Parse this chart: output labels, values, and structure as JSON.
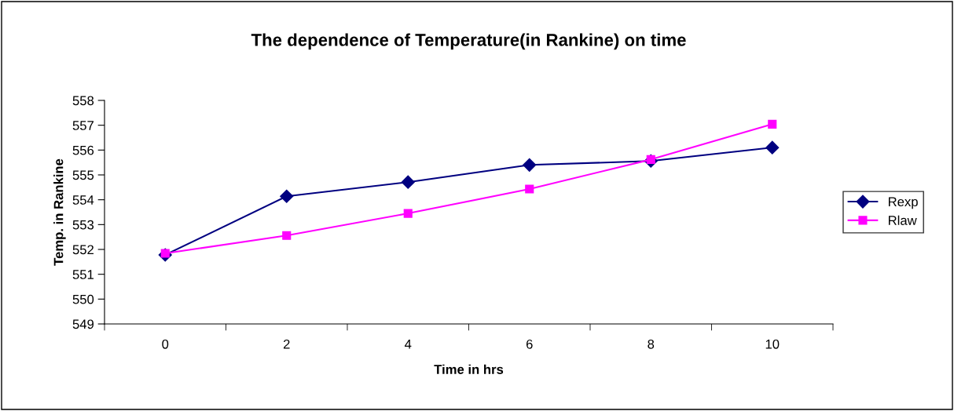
{
  "chart_data": {
    "type": "line",
    "title": "The dependence of Temperature(in Rankine) on time",
    "xlabel": "Time in hrs",
    "ylabel": "Temp. in Rankine",
    "categories": [
      "0",
      "2",
      "4",
      "6",
      "8",
      "10"
    ],
    "series": [
      {
        "name": "Rexp",
        "color": "#000080",
        "marker": "diamond",
        "values": [
          551.78,
          554.14,
          554.71,
          555.4,
          555.56,
          556.1
        ]
      },
      {
        "name": "Rlaw",
        "color": "#ff00ff",
        "marker": "square",
        "values": [
          551.84,
          552.56,
          553.45,
          554.43,
          555.62,
          557.04
        ]
      }
    ],
    "ylim": [
      549,
      558
    ],
    "yticks": [
      549,
      550,
      551,
      552,
      553,
      554,
      555,
      556,
      557,
      558
    ],
    "grid": false,
    "legend": "right",
    "line_style": "solid"
  }
}
